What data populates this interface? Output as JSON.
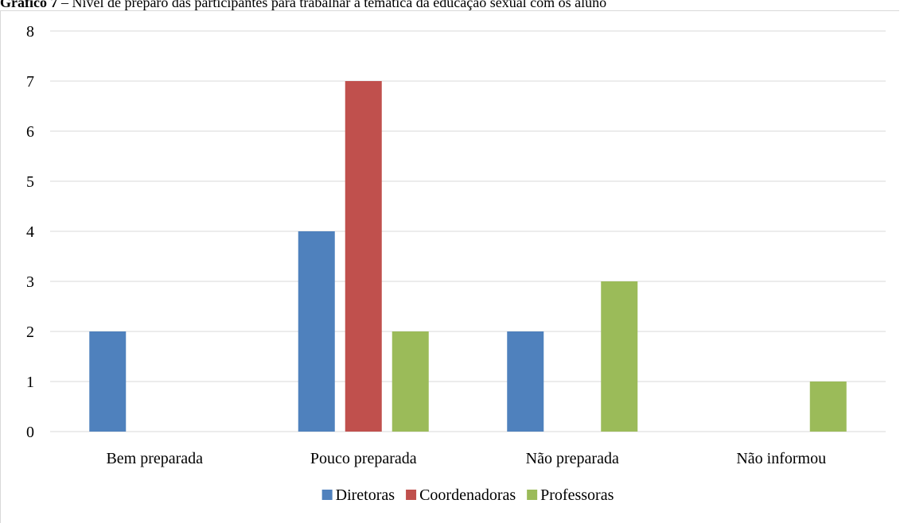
{
  "chart_data": {
    "type": "bar",
    "title_prefix": "Gráfico 7",
    "title": " – Nível de preparo das participantes para trabalhar a temática da educação sexual com os aluno",
    "categories": [
      "Bem preparada",
      "Pouco preparada",
      "Não preparada",
      "Não informou"
    ],
    "series": [
      {
        "name": "Diretoras",
        "color": "#4f81bd",
        "values": [
          2,
          4,
          2,
          0
        ]
      },
      {
        "name": "Coordenadoras",
        "color": "#c0504d",
        "values": [
          0,
          7,
          0,
          0
        ]
      },
      {
        "name": "Professoras",
        "color": "#9bbb59",
        "values": [
          0,
          2,
          3,
          1
        ]
      }
    ],
    "ylim": [
      0,
      8
    ],
    "yticks": [
      0,
      1,
      2,
      3,
      4,
      5,
      6,
      7,
      8
    ],
    "grid": true,
    "legend": "bottom"
  }
}
